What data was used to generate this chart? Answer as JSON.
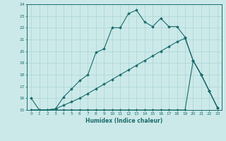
{
  "xlabel": "Humidex (Indice chaleur)",
  "xlim": [
    -0.5,
    23.5
  ],
  "ylim": [
    15,
    24
  ],
  "yticks": [
    15,
    16,
    17,
    18,
    19,
    20,
    21,
    22,
    23,
    24
  ],
  "xticks": [
    0,
    1,
    2,
    3,
    4,
    5,
    6,
    7,
    8,
    9,
    10,
    11,
    12,
    13,
    14,
    15,
    16,
    17,
    18,
    19,
    20,
    21,
    22,
    23
  ],
  "bg_color": "#cce9e9",
  "grid_color": "#b0d8d8",
  "line_color": "#1a6b6b",
  "lines": [
    {
      "x": [
        0,
        1,
        2,
        3,
        4,
        5,
        6,
        7,
        8,
        9,
        10,
        11,
        12,
        13,
        14,
        15,
        16,
        17,
        18,
        19,
        20,
        21,
        22,
        23
      ],
      "y": [
        16,
        15,
        15,
        15.1,
        16.1,
        16.8,
        17.5,
        18.0,
        19.9,
        20.2,
        22.0,
        22.0,
        23.2,
        23.5,
        22.5,
        22.1,
        22.8,
        22.1,
        22.1,
        21.2,
        19.2,
        18.0,
        16.6,
        15.2
      ]
    },
    {
      "x": [
        0,
        1,
        2,
        3,
        4,
        5,
        6,
        7,
        8,
        9,
        10,
        11,
        12,
        13,
        14,
        15,
        16,
        17,
        18,
        19,
        20,
        21,
        22,
        23
      ],
      "y": [
        15,
        15,
        15,
        15.1,
        15.4,
        15.7,
        16.0,
        16.4,
        16.8,
        17.2,
        17.6,
        18.0,
        18.4,
        18.8,
        19.2,
        19.6,
        20.0,
        20.4,
        20.8,
        21.1,
        19.2,
        18.0,
        16.6,
        15.2
      ]
    },
    {
      "x": [
        0,
        1,
        2,
        3,
        4,
        5,
        6,
        7,
        8,
        9,
        10,
        11,
        12,
        13,
        14,
        15,
        16,
        17,
        18,
        19,
        20,
        21,
        22,
        23
      ],
      "y": [
        15,
        15,
        15,
        15,
        15,
        15,
        15,
        15,
        15,
        15,
        15,
        15,
        15,
        15,
        15,
        15,
        15,
        15,
        15,
        15,
        19.2,
        18.0,
        16.6,
        15.2
      ]
    }
  ]
}
